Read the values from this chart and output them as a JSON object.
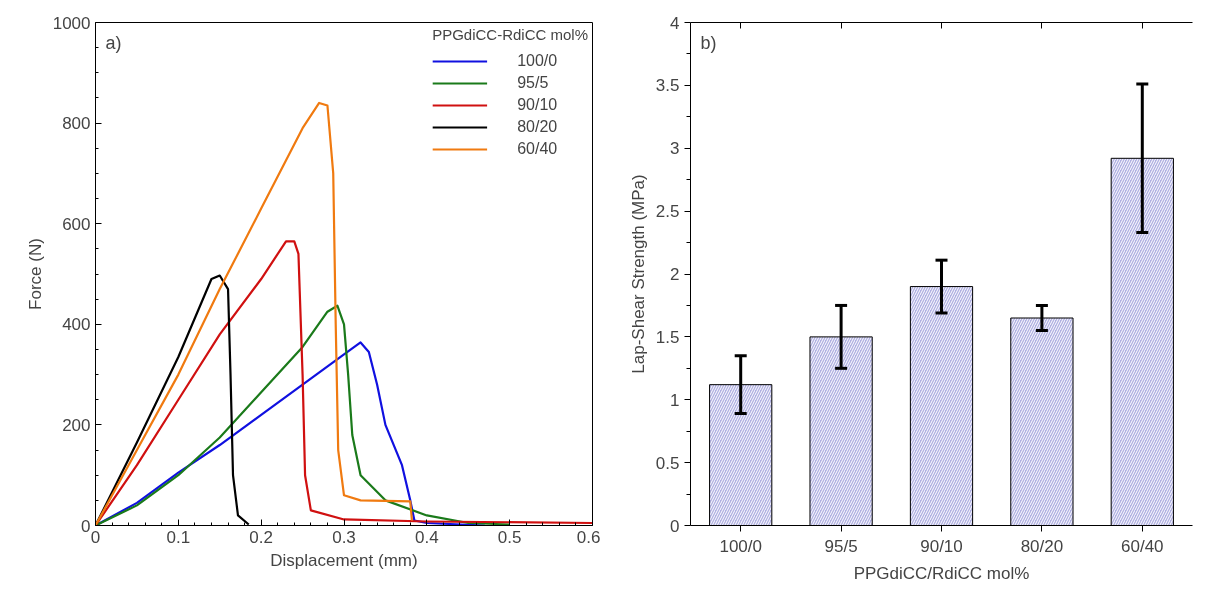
{
  "chart_data": [
    {
      "type": "line",
      "xlabel": "Displacement (mm)",
      "ylabel": "Force (N)",
      "legend_title": "PPGdiCC-RdiCC mol%",
      "legend": "top right",
      "annotations": [
        "a)"
      ],
      "xlim": [
        0,
        0.6
      ],
      "ylim": [
        0,
        1000
      ],
      "xticks": [
        0,
        0.1,
        0.2,
        0.3,
        0.4,
        0.5,
        0.6
      ],
      "yticks": [
        0,
        200,
        400,
        600,
        800,
        1000
      ],
      "grid": false,
      "series": [
        {
          "name": "100/0",
          "color": "#1010e0",
          "x": [
            0,
            0.05,
            0.1,
            0.15,
            0.2,
            0.25,
            0.3,
            0.32,
            0.33,
            0.34,
            0.35,
            0.37,
            0.38,
            0.385,
            0.4,
            0.47
          ],
          "values": [
            0,
            45,
            105,
            160,
            220,
            280,
            340,
            364,
            345,
            280,
            200,
            120,
            50,
            10,
            5,
            0
          ]
        },
        {
          "name": "95/5",
          "color": "#1a7a1a",
          "x": [
            0,
            0.05,
            0.1,
            0.15,
            0.2,
            0.25,
            0.28,
            0.292,
            0.3,
            0.305,
            0.31,
            0.32,
            0.35,
            0.4,
            0.45,
            0.5
          ],
          "values": [
            0,
            40,
            100,
            175,
            265,
            355,
            425,
            437,
            400,
            300,
            180,
            100,
            50,
            20,
            5,
            2
          ]
        },
        {
          "name": "90/10",
          "color": "#d01010",
          "x": [
            0,
            0.05,
            0.1,
            0.15,
            0.2,
            0.23,
            0.24,
            0.245,
            0.25,
            0.253,
            0.26,
            0.3,
            0.4,
            0.6
          ],
          "values": [
            0,
            120,
            250,
            380,
            490,
            565,
            565,
            540,
            300,
            100,
            30,
            12,
            8,
            5
          ]
        },
        {
          "name": "80/20",
          "color": "#000000",
          "x": [
            0,
            0.05,
            0.1,
            0.14,
            0.15,
            0.16,
            0.163,
            0.166,
            0.172,
            0.185
          ],
          "values": [
            0,
            165,
            335,
            490,
            497,
            470,
            300,
            100,
            20,
            2
          ]
        },
        {
          "name": "60/40",
          "color": "#f07a10",
          "x": [
            0,
            0.05,
            0.1,
            0.15,
            0.2,
            0.25,
            0.27,
            0.28,
            0.287,
            0.29,
            0.293,
            0.3,
            0.32,
            0.38,
            0.382
          ],
          "values": [
            0,
            150,
            300,
            470,
            630,
            790,
            840,
            835,
            700,
            400,
            150,
            60,
            50,
            48,
            10
          ]
        }
      ]
    },
    {
      "type": "bar",
      "xlabel": "PPGdiCC/RdiCC mol%",
      "ylabel": "Lap-Shear Strength (MPa)",
      "annotations": [
        "b)"
      ],
      "categories": [
        "100/0",
        "95/5",
        "90/10",
        "80/20",
        "60/40"
      ],
      "values": [
        1.12,
        1.5,
        1.9,
        1.65,
        2.92
      ],
      "errors": [
        0.23,
        0.25,
        0.21,
        0.1,
        0.59
      ],
      "color": "#b0b0e2",
      "ylim": [
        0,
        4
      ],
      "yticks": [
        0,
        0.5,
        1,
        1.5,
        2,
        2.5,
        3,
        3.5,
        4
      ],
      "grid": false
    }
  ]
}
